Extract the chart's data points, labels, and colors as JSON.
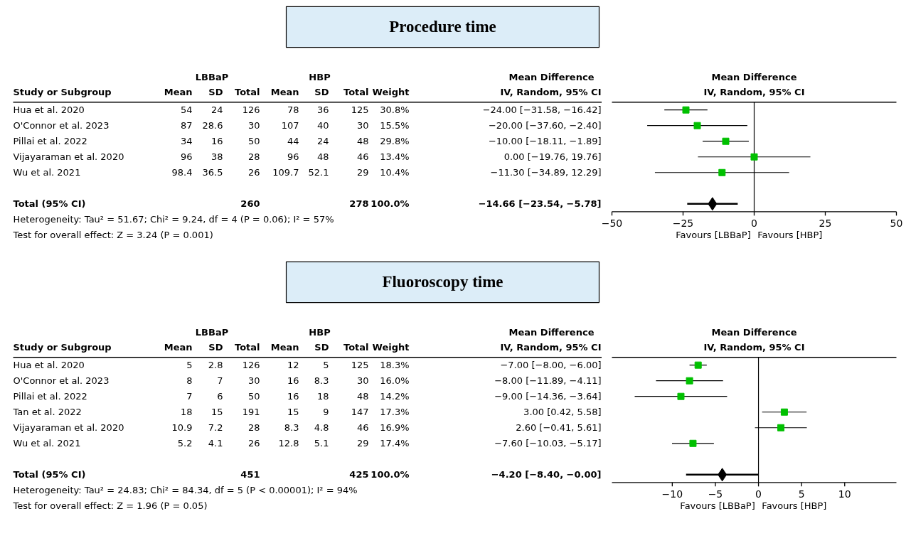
{
  "chart_data": [
    {
      "type": "other",
      "title": "Procedure time",
      "ylabel": "Study or Subgroup",
      "data_labels": true,
      "categories": [
        "Hua et al. 2020",
        "O'Connor et al. 2023",
        "Pillai et al. 2022",
        "Vijayaraman et al. 2020",
        "Wu et al. 2021",
        null,
        "Total (95% CI)"
      ],
      "series": [
        {
          "name": "Mean",
          "values": [
            54,
            87,
            34,
            96,
            98.4,
            null,
            null
          ]
        },
        {
          "name": "SD",
          "values": [
            24,
            28.6,
            16,
            38,
            36.5,
            null,
            null
          ]
        },
        {
          "name": "Total",
          "values": [
            126,
            30,
            50,
            28,
            26,
            null,
            260
          ]
        },
        {
          "name": "Mean",
          "values": [
            78,
            107,
            44,
            96,
            109.7,
            null,
            null
          ]
        },
        {
          "name": "SD",
          "values": [
            36,
            40,
            24,
            48,
            52.1,
            null,
            null
          ]
        },
        {
          "name": "Total",
          "values": [
            125,
            30,
            48,
            46,
            29,
            null,
            278
          ]
        },
        {
          "name": "Weight",
          "values": [
            30.8,
            15.5,
            29.8,
            13.4,
            10.4,
            null,
            100.0
          ],
          "value_labels": [
            "30.8%",
            "15.5%",
            "29.8%",
            "13.4%",
            "10.4%",
            null,
            "100.0%"
          ]
        },
        {
          "name": "Mean Difference\nIV, Random, 95% CI",
          "values": [
            -24.0,
            -20.0,
            -10.0,
            0.0,
            -11.3,
            null,
            -14.66
          ],
          "value_labels": [
            "−24.00 [−31.58, −16.42]",
            "−20.00 [−37.60, −2.40]",
            "−10.00 [−18.11, −1.89]",
            "0.00 [−19.76, 19.76]",
            "−11.30 [−34.89, 12.29]",
            null,
            "−14.66 [−23.54, −5.78]"
          ]
        }
      ],
      "annotations": [
        "LBBaP",
        "HBP",
        "Heterogeneity: Tau² = 51.67; Chi² = 9.24, df = 4 (P = 0.06); I² = 57%",
        "Test for overall effect: Z = 3.24 (P = 0.001)"
      ]
    },
    {
      "type": "scatter",
      "title": "Mean Difference",
      "subtitle": "IV, Random, 95% CI",
      "orientation": "horizontal",
      "categories": [
        null,
        null,
        null,
        null,
        null,
        null,
        null
      ],
      "xlim": [
        -50,
        50
      ],
      "xticks": [
        {
          "value": -50,
          "label": "−50"
        },
        {
          "value": -25,
          "label": "−25"
        },
        0,
        25,
        50
      ],
      "marker": "square",
      "ref_lines": [
        {
          "axis": "x",
          "value": 0
        }
      ],
      "series": [
        {
          "color": "#00c000",
          "values": [
            -24.0,
            -20.0,
            -10.0,
            0.0,
            -11.3,
            null,
            null
          ],
          "errors": [
            [
              -31.58,
              -16.42
            ],
            [
              -37.6,
              -2.4
            ],
            [
              -18.11,
              -1.89
            ],
            [
              -19.76,
              19.76
            ],
            [
              -34.89,
              12.29
            ],
            null,
            null
          ]
        },
        {
          "color": "#000000",
          "marker": "diamond",
          "values": [
            null,
            null,
            null,
            null,
            null,
            null,
            -14.66
          ],
          "errors": [
            null,
            null,
            null,
            null,
            null,
            null,
            [
              -23.54,
              -5.78
            ]
          ]
        }
      ],
      "annotations": [
        "Favours [LBBaP]",
        "Favours [HBP]"
      ]
    },
    {
      "type": "other",
      "title": "Fluoroscopy time",
      "ylabel": "Study or Subgroup",
      "data_labels": true,
      "categories": [
        "Hua et al. 2020",
        "O'Connor et al. 2023",
        "Pillai et al. 2022",
        "Tan et al. 2022",
        "Vijayaraman et al. 2020",
        "Wu et al. 2021",
        null,
        "Total (95% CI)"
      ],
      "series": [
        {
          "name": "Mean",
          "values": [
            5,
            8,
            7,
            18,
            10.9,
            5.2,
            null,
            null
          ]
        },
        {
          "name": "SD",
          "values": [
            2.8,
            7,
            6,
            15,
            7.2,
            4.1,
            null,
            null
          ]
        },
        {
          "name": "Total",
          "values": [
            126,
            30,
            50,
            191,
            28,
            26,
            null,
            451
          ]
        },
        {
          "name": "Mean",
          "values": [
            12,
            16,
            16,
            15,
            8.3,
            12.8,
            null,
            null
          ]
        },
        {
          "name": "SD",
          "values": [
            5,
            8.3,
            18,
            9,
            4.8,
            5.1,
            null,
            null
          ]
        },
        {
          "name": "Total",
          "values": [
            125,
            30,
            48,
            147,
            46,
            29,
            null,
            425
          ]
        },
        {
          "name": "Weight",
          "values": [
            18.3,
            16.0,
            14.2,
            17.3,
            16.9,
            17.4,
            null,
            100.0
          ],
          "value_labels": [
            "18.3%",
            "16.0%",
            "14.2%",
            "17.3%",
            "16.9%",
            "17.4%",
            null,
            "100.0%"
          ]
        },
        {
          "name": "Mean Difference\nIV, Random, 95% CI",
          "values": [
            -7.0,
            -8.0,
            -9.0,
            3.0,
            2.6,
            -7.6,
            null,
            -4.2
          ],
          "value_labels": [
            "−7.00 [−8.00, −6.00]",
            "−8.00 [−11.89, −4.11]",
            "−9.00 [−14.36, −3.64]",
            "3.00 [0.42, 5.58]",
            "2.60 [−0.41, 5.61]",
            "−7.60 [−10.03, −5.17]",
            null,
            "−4.20 [−8.40, −0.00]"
          ]
        }
      ],
      "annotations": [
        "LBBaP",
        "HBP",
        "Heterogeneity: Tau² = 24.83; Chi² = 84.34, df = 5 (P < 0.00001); I² = 94%",
        "Test for overall effect: Z = 1.96 (P = 0.05)"
      ]
    },
    {
      "type": "scatter",
      "title": "Mean Difference",
      "subtitle": "IV, Random, 95% CI",
      "orientation": "horizontal",
      "categories": [
        null,
        null,
        null,
        null,
        null,
        null,
        null,
        null
      ],
      "xlim": [
        -17,
        16
      ],
      "xticks": [
        {
          "value": -10,
          "label": "−10"
        },
        {
          "value": -5,
          "label": "−5"
        },
        0,
        5,
        10
      ],
      "marker": "square",
      "ref_lines": [
        {
          "axis": "x",
          "value": 0
        }
      ],
      "series": [
        {
          "color": "#00c000",
          "values": [
            -7.0,
            -8.0,
            -9.0,
            3.0,
            2.6,
            -7.6,
            null,
            null
          ],
          "errors": [
            [
              -8.0,
              -6.0
            ],
            [
              -11.89,
              -4.11
            ],
            [
              -14.36,
              -3.64
            ],
            [
              0.42,
              5.58
            ],
            [
              -0.41,
              5.61
            ],
            [
              -10.03,
              -5.17
            ],
            null,
            null
          ]
        },
        {
          "color": "#000000",
          "marker": "diamond",
          "values": [
            null,
            null,
            null,
            null,
            null,
            null,
            null,
            -4.2
          ],
          "errors": [
            null,
            null,
            null,
            null,
            null,
            null,
            null,
            [
              -8.4,
              0
            ]
          ]
        }
      ],
      "annotations": [
        "Favours [LBBaP]",
        "Favours [HBP]"
      ]
    }
  ]
}
